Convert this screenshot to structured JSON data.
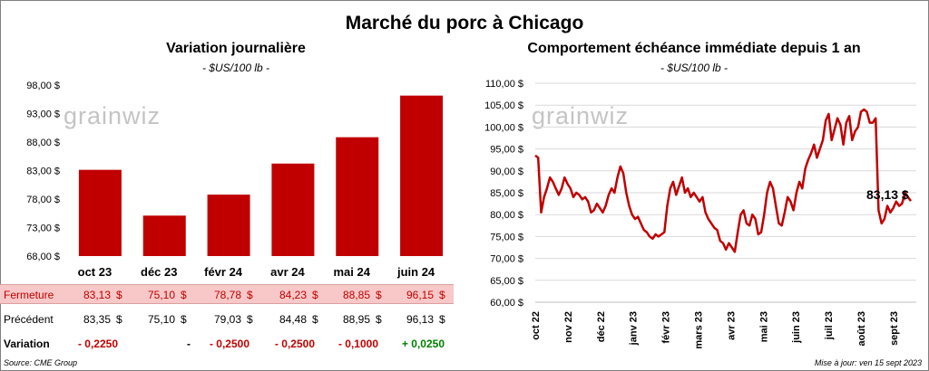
{
  "title": "Marché du porc à Chicago",
  "left_chart": {
    "subtitle": "Variation  journalière",
    "unit": "- $US/100 lb -",
    "watermark": "grainwiz"
  },
  "right_chart": {
    "subtitle": "Comportement  échéance immédiate depuis 1 an",
    "unit": "- $US/100 lb -",
    "watermark": "grainwiz",
    "last_label": "83,13 $"
  },
  "table": {
    "currency": "$",
    "rows": [
      {
        "label": "Fermeture",
        "values": [
          "83,13",
          "75,10",
          "78,78",
          "84,23",
          "88,85",
          "96,15"
        ]
      },
      {
        "label": "Précédent",
        "values": [
          "83,35",
          "75,10",
          "79,03",
          "84,48",
          "88,95",
          "96,13"
        ]
      }
    ],
    "variation_label": "Variation",
    "variation": [
      "- 0,2250",
      "-",
      "- 0,2500",
      "- 0,2500",
      "- 0,1000",
      "+ 0,0250"
    ]
  },
  "footer": {
    "source": "Source: CME Group",
    "updated": "Mise à jour: ven 15 sept 2023"
  },
  "colors": {
    "bar": "#c00000",
    "line": "#c00000",
    "grid": "#d9d9d9"
  },
  "chart_data": [
    {
      "type": "bar",
      "categories": [
        "oct 23",
        "déc 23",
        "févr 24",
        "avr 24",
        "mai 24",
        "juin 24"
      ],
      "values": [
        83.13,
        75.1,
        78.78,
        84.23,
        88.85,
        96.15
      ],
      "ylim": [
        68,
        98
      ],
      "yticks": [
        "68,00 $",
        "73,00 $",
        "78,00 $",
        "83,00 $",
        "88,00 $",
        "93,00 $",
        "98,00 $"
      ],
      "tick_values": [
        68,
        73,
        78,
        83,
        88,
        93,
        98
      ],
      "grid": false
    },
    {
      "type": "line",
      "ylim": [
        60,
        110
      ],
      "yticks": [
        "60,00 $",
        "65,00 $",
        "70,00 $",
        "75,00 $",
        "80,00 $",
        "85,00 $",
        "90,00 $",
        "95,00 $",
        "100,00 $",
        "105,00 $",
        "110,00 $"
      ],
      "tick_values": [
        60,
        65,
        70,
        75,
        80,
        85,
        90,
        95,
        100,
        105,
        110
      ],
      "xticks": [
        "oct 22",
        "nov 22",
        "déc 22",
        "janv 23",
        "févr 23",
        "mars 23",
        "avr 23",
        "mai 23",
        "juin 23",
        "juil 23",
        "août 23",
        "sept 23"
      ],
      "grid": true,
      "values": [
        93.5,
        93.0,
        80.5,
        84.0,
        86.0,
        88.5,
        87.5,
        86.0,
        84.5,
        86.0,
        88.5,
        87.0,
        86.0,
        84.0,
        85.0,
        84.5,
        83.5,
        84.0,
        83.0,
        80.5,
        81.0,
        82.5,
        81.5,
        80.5,
        82.0,
        84.5,
        86.0,
        85.0,
        88.5,
        91.0,
        89.5,
        85.0,
        82.0,
        80.0,
        79.0,
        79.5,
        78.0,
        76.5,
        76.0,
        75.0,
        74.5,
        75.5,
        75.0,
        75.5,
        76.0,
        82.0,
        86.0,
        87.5,
        84.5,
        86.5,
        88.5,
        85.0,
        86.0,
        84.0,
        85.0,
        84.0,
        83.0,
        84.0,
        80.5,
        79.0,
        78.0,
        77.0,
        76.5,
        74.0,
        73.5,
        72.0,
        73.5,
        72.5,
        71.5,
        76.0,
        80.0,
        81.0,
        78.0,
        77.5,
        80.0,
        79.0,
        75.5,
        76.0,
        80.0,
        85.0,
        87.5,
        86.0,
        82.0,
        78.0,
        77.5,
        80.5,
        84.0,
        83.0,
        81.0,
        85.0,
        87.5,
        86.0,
        90.5,
        92.5,
        94.0,
        96.0,
        93.0,
        95.0,
        97.0,
        101.5,
        103.0,
        97.0,
        99.5,
        102.0,
        100.5,
        96.0,
        101.0,
        102.5,
        97.0,
        99.0,
        100.0,
        103.5,
        104.0,
        103.5,
        101.0,
        101.0,
        102.0,
        81.0,
        78.0,
        79.0,
        82.0,
        80.5,
        81.5,
        83.0,
        82.0,
        82.5,
        85.0,
        84.0,
        83.13
      ]
    }
  ]
}
